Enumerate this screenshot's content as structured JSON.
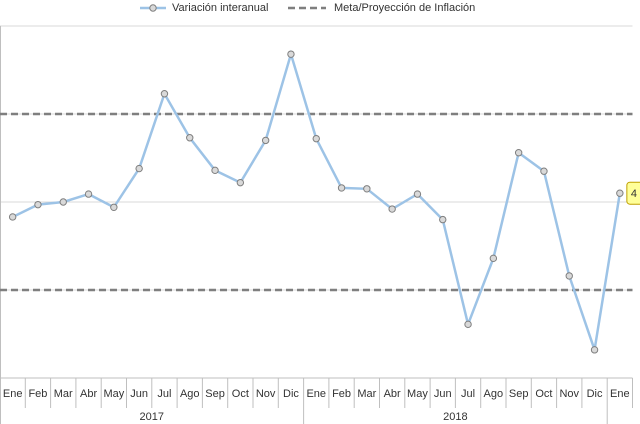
{
  "chart_data": {
    "type": "line",
    "categories": [
      "Ene",
      "Feb",
      "Mar",
      "Abr",
      "May",
      "Jun",
      "Jul",
      "Ago",
      "Sep",
      "Oct",
      "Nov",
      "Dic",
      "Ene",
      "Feb",
      "Mar",
      "Abr",
      "May",
      "Jun",
      "Jul",
      "Ago",
      "Sep",
      "Oct",
      "Nov",
      "Dic",
      "Ene"
    ],
    "years": [
      "2017",
      "2018"
    ],
    "series": [
      {
        "name": "Variación interanual",
        "color": "#9dc3e6",
        "values": [
          3.83,
          3.97,
          4.0,
          4.09,
          3.94,
          4.38,
          5.23,
          4.73,
          4.36,
          4.22,
          4.7,
          5.68,
          4.72,
          4.16,
          4.15,
          3.92,
          4.09,
          3.8,
          2.61,
          3.36,
          4.56,
          4.35,
          3.16,
          2.32,
          4.1
        ],
        "value_labels": [
          null,
          null,
          null,
          null,
          null,
          null,
          null,
          null,
          null,
          null,
          null,
          null,
          null,
          null,
          null,
          null,
          null,
          null,
          null,
          null,
          null,
          null,
          null,
          null,
          "4"
        ]
      }
    ],
    "reference_lines": {
      "name": "Meta/Proyección de Inflación",
      "color": "#7f7f7f",
      "values": [
        5,
        3
      ]
    },
    "ylim": [
      2,
      6
    ],
    "yticks": [
      2,
      3,
      4,
      5,
      6
    ],
    "grid": true
  }
}
